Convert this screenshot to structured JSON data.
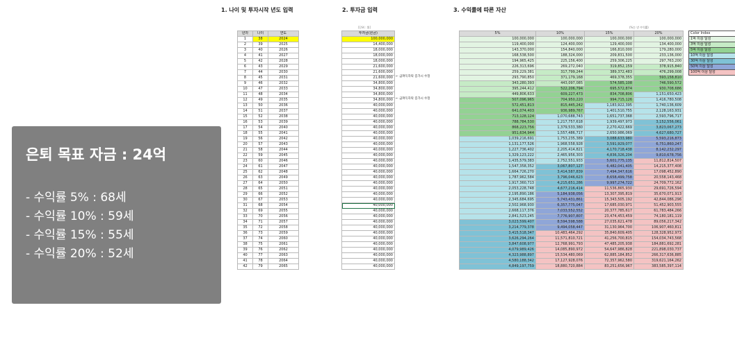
{
  "sections": {
    "age": "1. 나이 및 투자시작 년도 입력",
    "invest": "2. 투자금 입력",
    "assets": "3. 수익률에 따른 자산"
  },
  "invest_unit": "[단위 : 원]",
  "assets_unit": "(%는 년 수익률)",
  "age_headers": [
    "년차",
    "나이",
    "연도"
  ],
  "invest_header": "투자금(원금)",
  "rate_headers": [
    "5%",
    "10%",
    "15%",
    "20%"
  ],
  "notes": [
    "← 금여득하락 증가시 수정",
    "← 금여득하락 증가시 수정"
  ],
  "rows": [
    [
      "1",
      "38",
      "2024",
      "100,000,000",
      "100,000,000",
      "100,000,000",
      "100,000,000",
      "100,000,000"
    ],
    [
      "2",
      "39",
      "2025",
      "14,400,000",
      "119,400,000",
      "124,400,000",
      "129,400,000",
      "134,400,000"
    ],
    [
      "3",
      "40",
      "2026",
      "18,000,000",
      "143,370,000",
      "154,840,000",
      "166,810,000",
      "179,280,000"
    ],
    [
      "4",
      "41",
      "2027",
      "18,000,000",
      "168,538,500",
      "188,324,000",
      "209,831,500",
      "233,136,000"
    ],
    [
      "5",
      "42",
      "2028",
      "18,000,000",
      "194,965,425",
      "225,156,400",
      "259,306,225",
      "297,763,200"
    ],
    [
      "6",
      "43",
      "2029",
      "21,600,000",
      "226,313,696",
      "269,272,040",
      "319,852,159",
      "378,915,840"
    ],
    [
      "7",
      "44",
      "2030",
      "21,600,000",
      "259,229,381",
      "317,799,244",
      "389,372,483",
      "476,299,008"
    ],
    [
      "8",
      "45",
      "2031",
      "21,600,000",
      "293,790,850",
      "371,179,168",
      "469,378,355",
      "593,158,810"
    ],
    [
      "9",
      "46",
      "2032",
      "34,800,000",
      "343,280,393",
      "443,097,085",
      "574,585,108",
      "746,590,572"
    ],
    [
      "10",
      "47",
      "2033",
      "34,800,000",
      "395,244,412",
      "522,206,794",
      "695,572,874",
      "930,708,686"
    ],
    [
      "11",
      "48",
      "2034",
      "34,800,000",
      "449,806,633",
      "609,227,473",
      "834,708,806",
      "1,151,650,423"
    ],
    [
      "12",
      "49",
      "2035",
      "34,800,000",
      "507,096,965",
      "704,950,220",
      "994,715,126",
      "1,416,780,508"
    ],
    [
      "13",
      "50",
      "2036",
      "40,000,000",
      "572,451,813",
      "815,445,242",
      "1,183,922,395",
      "1,740,136,609"
    ],
    [
      "14",
      "51",
      "2037",
      "40,000,000",
      "641,074,403",
      "936,989,767",
      "1,401,510,755",
      "2,128,163,931"
    ],
    [
      "15",
      "52",
      "2038",
      "40,000,000",
      "713,128,124",
      "1,070,688,743",
      "1,651,737,368",
      "2,593,796,717"
    ],
    [
      "16",
      "53",
      "2039",
      "40,000,000",
      "788,784,530",
      "1,217,757,618",
      "1,939,497,973",
      "3,152,556,061"
    ],
    [
      "17",
      "54",
      "2040",
      "40,000,000",
      "868,223,756",
      "1,379,533,380",
      "2,270,422,669",
      "3,823,067,273"
    ],
    [
      "18",
      "55",
      "2041",
      "40,000,000",
      "951,634,944",
      "1,557,486,717",
      "2,650,986,069",
      "4,627,680,727"
    ],
    [
      "19",
      "56",
      "2042",
      "40,000,000",
      "1,039,216,691",
      "1,753,235,389",
      "3,088,633,980",
      "5,593,216,873"
    ],
    [
      "20",
      "57",
      "2043",
      "40,000,000",
      "1,131,177,526",
      "1,968,558,928",
      "3,591,929,077",
      "6,751,860,247"
    ],
    [
      "21",
      "58",
      "2044",
      "40,000,000",
      "1,227,736,402",
      "2,205,414,821",
      "4,170,718,438",
      "8,142,232,297"
    ],
    [
      "22",
      "59",
      "2045",
      "40,000,000",
      "1,329,123,222",
      "2,465,956,303",
      "4,836,326,204",
      "9,810,678,756"
    ],
    [
      "23",
      "60",
      "2046",
      "40,000,000",
      "1,435,579,383",
      "2,752,551,933",
      "5,601,775,135",
      "11,812,814,507"
    ],
    [
      "24",
      "61",
      "2047",
      "40,000,000",
      "1,547,358,352",
      "3,067,807,127",
      "6,482,041,405",
      "14,215,377,408"
    ],
    [
      "25",
      "62",
      "2048",
      "40,000,000",
      "1,664,726,270",
      "3,414,587,839",
      "7,494,347,616",
      "17,098,452,890"
    ],
    [
      "26",
      "63",
      "2049",
      "40,000,000",
      "1,787,962,584",
      "3,796,046,623",
      "8,658,499,758",
      "20,558,143,468"
    ],
    [
      "27",
      "64",
      "2050",
      "40,000,000",
      "1,917,360,713",
      "4,215,651,286",
      "9,997,274,722",
      "24,709,772,162"
    ],
    [
      "28",
      "65",
      "2051",
      "40,000,000",
      "2,053,228,748",
      "4,677,216,414",
      "11,536,865,930",
      "29,691,726,594"
    ],
    [
      "29",
      "66",
      "2052",
      "40,000,000",
      "2,195,890,186",
      "5,184,938,056",
      "13,307,395,819",
      "35,670,071,913"
    ],
    [
      "30",
      "67",
      "2053",
      "40,000,000",
      "2,345,684,695",
      "5,743,431,861",
      "15,343,505,192",
      "42,844,086,296"
    ],
    [
      "31",
      "68",
      "2054",
      "40,000,000",
      "2,502,968,930",
      "6,357,775,047",
      "17,685,030,971",
      "51,452,903,555"
    ],
    [
      "32",
      "69",
      "2055",
      "40,000,000",
      "2,668,117,376",
      "7,033,552,552",
      "20,377,785,617",
      "61,783,484,266"
    ],
    [
      "33",
      "70",
      "2056",
      "40,000,000",
      "2,841,523,245",
      "7,776,907,807",
      "23,474,453,459",
      "74,180,181,119"
    ],
    [
      "34",
      "71",
      "2057",
      "40,000,000",
      "3,023,599,407",
      "8,594,598,588",
      "27,035,621,478",
      "89,056,217,342"
    ],
    [
      "35",
      "72",
      "2058",
      "40,000,000",
      "3,214,779,378",
      "9,494,058,447",
      "31,130,964,700",
      "106,907,460,811"
    ],
    [
      "36",
      "73",
      "2059",
      "40,000,000",
      "3,415,518,347",
      "10,483,464,292",
      "35,840,609,405",
      "128,328,952,973"
    ],
    [
      "37",
      "74",
      "2060",
      "40,000,000",
      "3,626,294,264",
      "11,571,810,721",
      "41,256,700,815",
      "154,034,743,568"
    ],
    [
      "38",
      "75",
      "2061",
      "40,000,000",
      "3,847,608,977",
      "12,768,991,793",
      "47,485,205,938",
      "184,881,692,281"
    ],
    [
      "39",
      "76",
      "2062",
      "40,000,000",
      "4,079,989,426",
      "14,085,890,972",
      "54,647,986,828",
      "221,898,030,737"
    ],
    [
      "40",
      "77",
      "2063",
      "40,000,000",
      "4,323,988,897",
      "15,534,480,069",
      "62,885,184,852",
      "266,317,636,885"
    ],
    [
      "41",
      "78",
      "2064",
      "40,000,000",
      "4,580,188,342",
      "17,127,928,076",
      "72,357,962,580",
      "319,621,164,262"
    ],
    [
      "42",
      "79",
      "2065",
      "40,000,000",
      "4,849,197,759",
      "18,880,720,884",
      "83,251,656,967",
      "383,585,397,114"
    ]
  ],
  "color_index": {
    "title": "Color Index",
    "items": [
      {
        "label": "1억 이상 달성",
        "color": "#e2f4e2"
      },
      {
        "label": "3억 이상 달성",
        "color": "#c6ebc6"
      },
      {
        "label": "5억 이상 달성",
        "color": "#93d293"
      },
      {
        "label": "10억 이상 달성",
        "color": "#b6e3ea"
      },
      {
        "label": "30억 이상 달성",
        "color": "#7fc2d6"
      },
      {
        "label": "50억 이상 달성",
        "color": "#8fa6d8"
      },
      {
        "label": "100억 이상 달성",
        "color": "#f4c3c3"
      }
    ]
  },
  "summary": {
    "title": "은퇴 목표 자금 : 24억",
    "lines": [
      "- 수익률  5%  : 68세",
      "- 수익률 10% : 59세",
      "- 수익률 15% : 55세",
      "- 수익률 20% : 52세"
    ]
  }
}
